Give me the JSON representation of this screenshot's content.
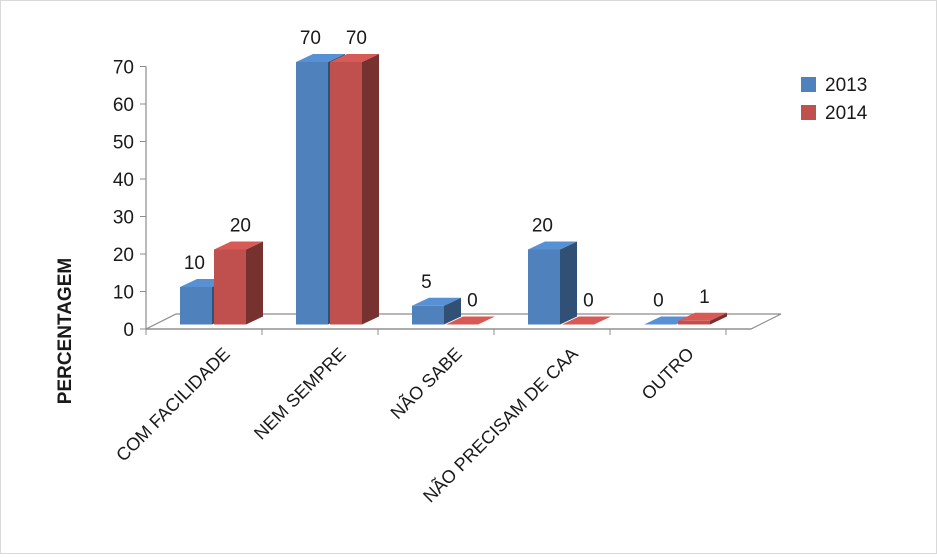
{
  "chart_data": {
    "type": "bar",
    "title": "",
    "xlabel": "",
    "ylabel": "PERCENTAGEM",
    "ylim": [
      0,
      70
    ],
    "yticks": [
      0,
      10,
      20,
      30,
      40,
      50,
      60,
      70
    ],
    "categories": [
      "COM FACILIDADE",
      "NEM SEMPRE",
      "NÃO SABE",
      "NÃO PRECISAM DE CAA",
      "OUTRO"
    ],
    "series": [
      {
        "name": "2013",
        "values": [
          10,
          70,
          5,
          20,
          0
        ],
        "color": "#4F81BD"
      },
      {
        "name": "2014",
        "values": [
          20,
          70,
          0,
          0,
          1
        ],
        "color": "#C0504D"
      }
    ],
    "legend_position": "right",
    "grid": false,
    "style": "3d-clustered-column"
  }
}
